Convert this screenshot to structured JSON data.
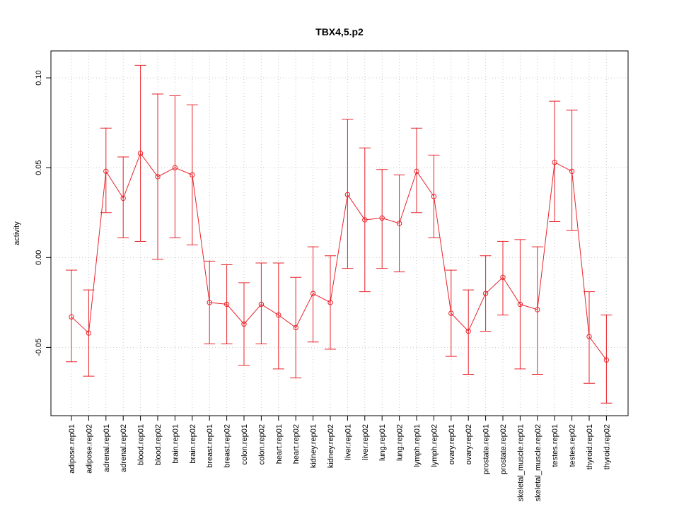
{
  "chart_data": {
    "type": "line",
    "title": "TBX4,5.p2",
    "xlabel": "",
    "ylabel": "activity",
    "ylim": [
      -0.088,
      0.115
    ],
    "yticks": [
      -0.05,
      0.0,
      0.05,
      0.1
    ],
    "ytick_labels": [
      "-0.05",
      "0.00",
      "0.05",
      "0.10"
    ],
    "grid": true,
    "legend": "none",
    "line_color": "#e8232a",
    "grid_color": "#c8c8c8",
    "categories": [
      "adipose.rep01",
      "adipose.rep02",
      "adrenal.rep01",
      "adrenal.rep02",
      "blood.rep01",
      "blood.rep02",
      "brain.rep01",
      "brain.rep02",
      "breast.rep01",
      "breast.rep02",
      "colon.rep01",
      "colon.rep02",
      "heart.rep01",
      "heart.rep02",
      "kidney.rep01",
      "kidney.rep02",
      "liver.rep01",
      "liver.rep02",
      "lung.rep01",
      "lung.rep02",
      "lymph.rep01",
      "lymph.rep02",
      "ovary.rep01",
      "ovary.rep02",
      "prostate.rep01",
      "prostate.rep02",
      "skeletal_muscle.rep01",
      "skeletal_muscle.rep02",
      "testes.rep01",
      "testes.rep02",
      "thyroid.rep01",
      "thyroid.rep02"
    ],
    "series": [
      {
        "values": [
          -0.033,
          -0.042,
          0.048,
          0.033,
          0.058,
          0.045,
          0.05,
          0.046,
          -0.025,
          -0.026,
          -0.037,
          -0.026,
          -0.032,
          -0.039,
          -0.02,
          -0.025,
          0.035,
          0.021,
          0.022,
          0.019,
          0.048,
          0.034,
          -0.031,
          -0.041,
          -0.02,
          -0.011,
          -0.026,
          -0.029,
          0.053,
          0.048,
          -0.044,
          -0.057
        ],
        "upper": [
          -0.007,
          -0.018,
          0.072,
          0.056,
          0.107,
          0.091,
          0.09,
          0.085,
          -0.002,
          -0.004,
          -0.014,
          -0.003,
          -0.003,
          -0.011,
          0.006,
          0.001,
          0.077,
          0.061,
          0.049,
          0.046,
          0.072,
          0.057,
          -0.007,
          -0.018,
          0.001,
          0.009,
          0.01,
          0.006,
          0.087,
          0.082,
          -0.019,
          -0.032
        ],
        "lower": [
          -0.058,
          -0.066,
          0.025,
          0.011,
          0.009,
          -0.001,
          0.011,
          0.007,
          -0.048,
          -0.048,
          -0.06,
          -0.048,
          -0.062,
          -0.067,
          -0.047,
          -0.051,
          -0.006,
          -0.019,
          -0.006,
          -0.008,
          0.025,
          0.011,
          -0.055,
          -0.065,
          -0.041,
          -0.032,
          -0.062,
          -0.065,
          0.02,
          0.015,
          -0.07,
          -0.081
        ]
      }
    ]
  }
}
